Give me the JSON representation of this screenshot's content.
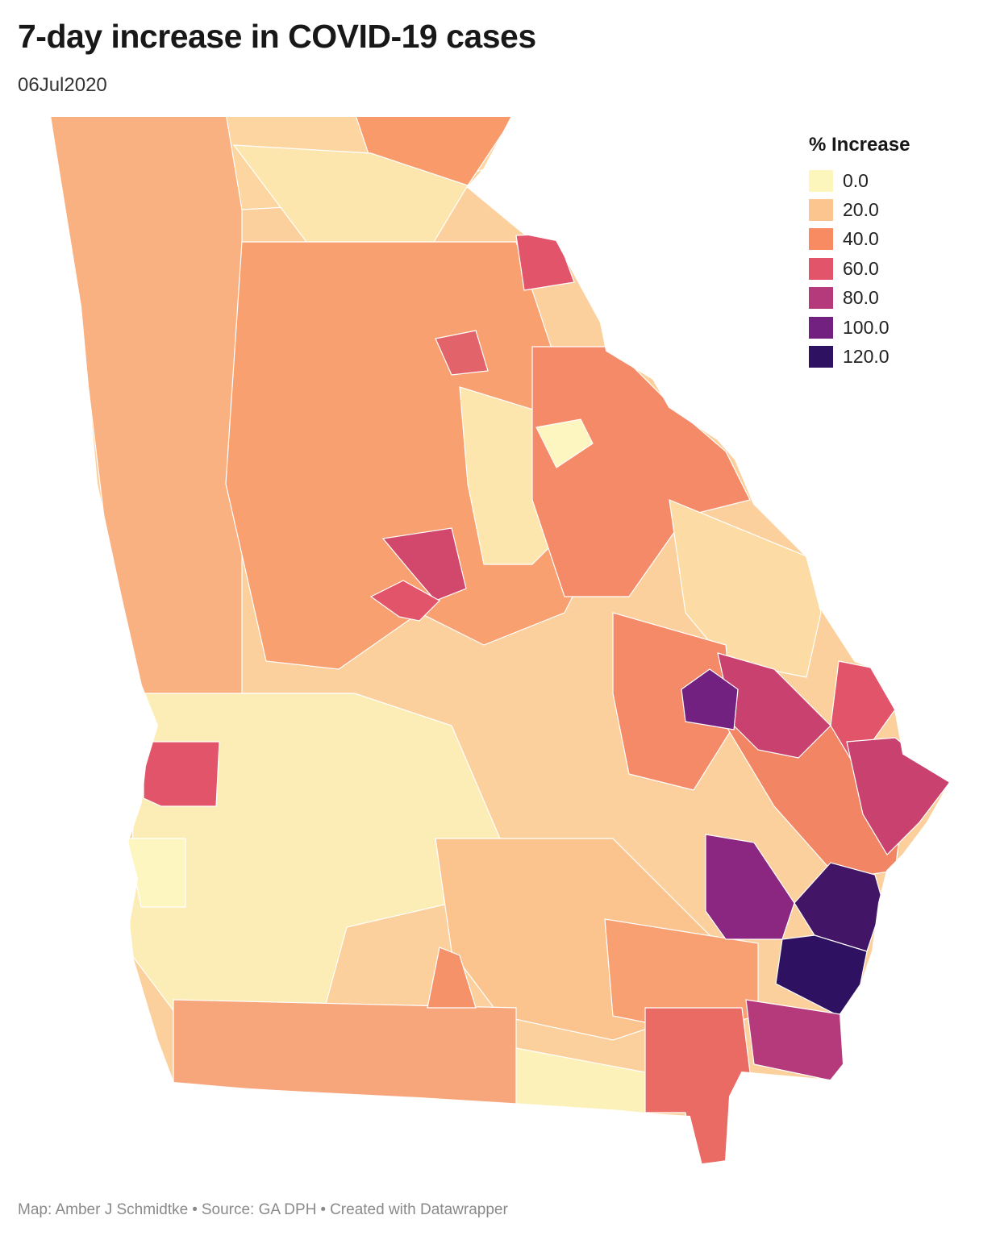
{
  "header": {
    "title": "7-day increase in COVID-19 cases",
    "subtitle": "06Jul2020"
  },
  "legend": {
    "title": "% Increase",
    "items": [
      {
        "label": "0.0",
        "color": "#fcf6bd"
      },
      {
        "label": "20.0",
        "color": "#fcc48f"
      },
      {
        "label": "40.0",
        "color": "#f98b62"
      },
      {
        "label": "60.0",
        "color": "#e2546a"
      },
      {
        "label": "80.0",
        "color": "#b43a7c"
      },
      {
        "label": "100.0",
        "color": "#722180"
      },
      {
        "label": "120.0",
        "color": "#2e1160"
      }
    ]
  },
  "footer": {
    "map_credit": "Map: Amber J Schmidtke",
    "source": "Source: GA DPH",
    "tool": "Created with Datawrapper",
    "separator": "•"
  },
  "map_data": {
    "region": "Georgia counties",
    "value": "7-day % increase in COVID-19 cases",
    "highlighted_regions": [
      {
        "area": "southeast coast (darkest)",
        "bin": "120.0"
      },
      {
        "area": "coastal county north of darkest",
        "bin": "100.0+"
      },
      {
        "area": "inland southeast",
        "bin": "100.0"
      },
      {
        "area": "east-central",
        "bin": "80.0"
      },
      {
        "area": "far southeast border",
        "bin": "80.0"
      }
    ]
  }
}
